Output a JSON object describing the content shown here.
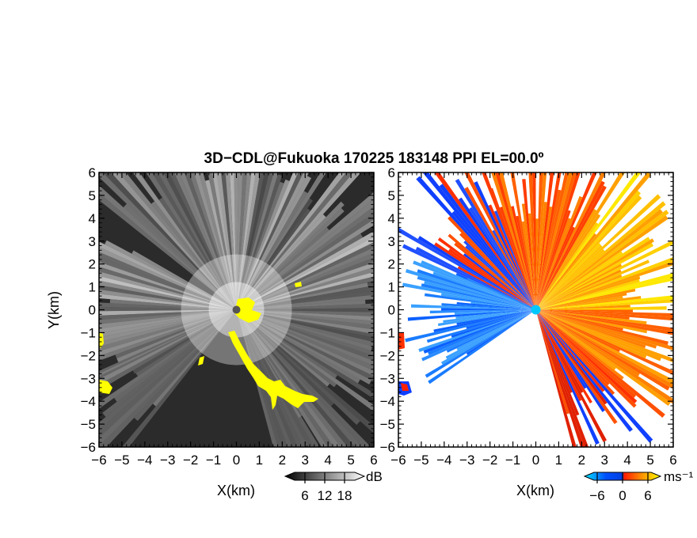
{
  "title": "3D−CDL@Fukuoka 170225 183148 PPI EL=00.0º",
  "chart_data": [
    {
      "type": "heatmap",
      "quantity": "reflectivity",
      "xlabel": "X(km)",
      "ylabel": "Y(km)",
      "xlim": [
        -6,
        6
      ],
      "ylim": [
        -6,
        6
      ],
      "xticks": [
        "−6",
        "−5",
        "−4",
        "−3",
        "−2",
        "−1",
        "0",
        "1",
        "2",
        "3",
        "4",
        "5",
        "6"
      ],
      "yticks": [
        "6",
        "5",
        "4",
        "3",
        "2",
        "1",
        "0",
        "−1",
        "−2",
        "−3",
        "−4",
        "−5",
        "−6"
      ],
      "colorbar": {
        "unit": "dB",
        "ticks": [
          "6",
          "12",
          "18"
        ],
        "range": [
          0,
          24
        ],
        "colors": [
          "#000000",
          "#ffffff"
        ]
      },
      "background_color": "#2b2b2b",
      "clutter_color": "#ffff00",
      "radar_site": [
        0,
        0
      ]
    },
    {
      "type": "heatmap",
      "quantity": "doppler_velocity",
      "xlabel": "X(km)",
      "xlim": [
        -6,
        6
      ],
      "ylim": [
        -6,
        6
      ],
      "xticks": [
        "−6",
        "−5",
        "−4",
        "−3",
        "−2",
        "−1",
        "0",
        "1",
        "2",
        "3",
        "4",
        "5",
        "6"
      ],
      "yticks": [
        "6",
        "5",
        "4",
        "3",
        "2",
        "1",
        "0",
        "−1",
        "−2",
        "−3",
        "−4",
        "−5",
        "−6"
      ],
      "colorbar": {
        "unit": "ms⁻¹",
        "ticks": [
          "−6",
          "0",
          "6"
        ],
        "range": [
          -9,
          9
        ],
        "colors": [
          "#00e5ff",
          "#0050ff",
          "#ff1a00",
          "#ffa000",
          "#ffff00"
        ]
      },
      "radar_site": [
        0,
        0
      ]
    }
  ]
}
